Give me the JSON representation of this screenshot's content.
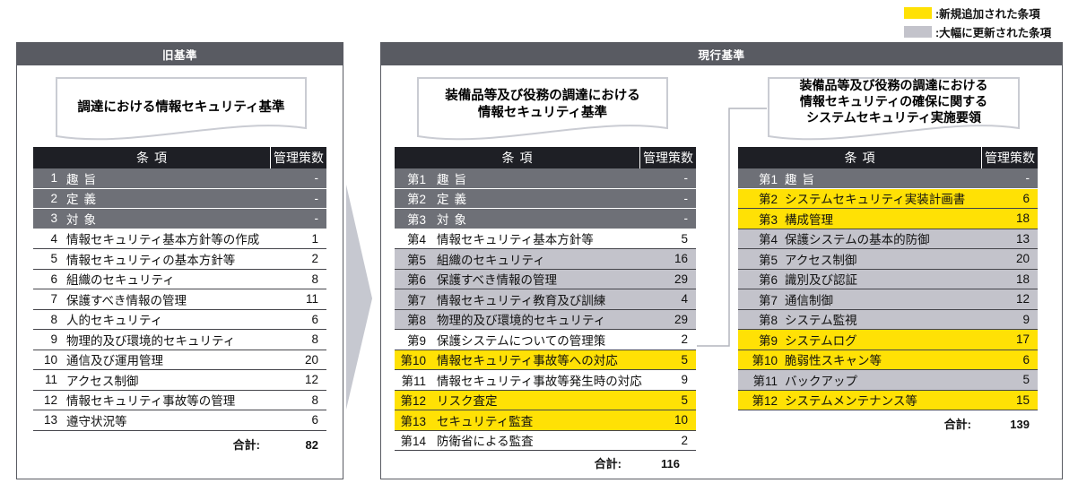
{
  "legend": {
    "new": {
      "label": ":新規追加された条項",
      "color": "#ffe105"
    },
    "updated": {
      "label": ":大幅に更新された条項",
      "color": "#c3c3cb"
    }
  },
  "old_panel": {
    "header": "旧基準",
    "doc_title": "調達における情報セキュリティ基準",
    "table": {
      "columns": {
        "item": "条項",
        "count": "管理策数"
      },
      "rows": [
        {
          "no": "1",
          "name": "趣旨",
          "count": "-",
          "style": "heading"
        },
        {
          "no": "2",
          "name": "定義",
          "count": "-",
          "style": "heading"
        },
        {
          "no": "3",
          "name": "対象",
          "count": "-",
          "style": "heading"
        },
        {
          "no": "4",
          "name": "情報セキュリティ基本方針等の作成",
          "count": "1",
          "style": "normal"
        },
        {
          "no": "5",
          "name": "情報セキュリティの基本方針等",
          "count": "2",
          "style": "normal"
        },
        {
          "no": "6",
          "name": "組織のセキュリティ",
          "count": "8",
          "style": "normal"
        },
        {
          "no": "7",
          "name": "保護すべき情報の管理",
          "count": "11",
          "style": "normal"
        },
        {
          "no": "8",
          "name": "人的セキュリティ",
          "count": "6",
          "style": "normal"
        },
        {
          "no": "9",
          "name": "物理的及び環境的セキュリティ",
          "count": "8",
          "style": "normal"
        },
        {
          "no": "10",
          "name": "通信及び運用管理",
          "count": "20",
          "style": "normal"
        },
        {
          "no": "11",
          "name": "アクセス制御",
          "count": "12",
          "style": "normal"
        },
        {
          "no": "12",
          "name": "情報セキュリティ事故等の管理",
          "count": "8",
          "style": "normal"
        },
        {
          "no": "13",
          "name": "遵守状況等",
          "count": "6",
          "style": "normal"
        }
      ],
      "total_label": "合計:",
      "total": "82"
    }
  },
  "current_panel": {
    "header": "現行基準",
    "standard_table": {
      "doc_title_lines": [
        "装備品等及び役務の調達における",
        "情報セキュリティ基準"
      ],
      "columns": {
        "item": "条項",
        "count": "管理策数"
      },
      "rows": [
        {
          "no": "第1",
          "name": "趣旨",
          "count": "-",
          "style": "heading"
        },
        {
          "no": "第2",
          "name": "定義",
          "count": "-",
          "style": "heading"
        },
        {
          "no": "第3",
          "name": "対象",
          "count": "-",
          "style": "heading"
        },
        {
          "no": "第4",
          "name": "情報セキュリティ基本方針等",
          "count": "5",
          "style": "normal"
        },
        {
          "no": "第5",
          "name": "組織のセキュリティ",
          "count": "16",
          "style": "updated"
        },
        {
          "no": "第6",
          "name": "保護すべき情報の管理",
          "count": "29",
          "style": "updated"
        },
        {
          "no": "第7",
          "name": "情報セキュリティ教育及び訓練",
          "count": "4",
          "style": "updated"
        },
        {
          "no": "第8",
          "name": "物理的及び環境的セキュリティ",
          "count": "29",
          "style": "updated"
        },
        {
          "no": "第9",
          "name": "保護システムについての管理策",
          "count": "2",
          "style": "normal"
        },
        {
          "no": "第10",
          "name": "情報セキュリティ事故等への対応",
          "count": "5",
          "style": "new"
        },
        {
          "no": "第11",
          "name": "情報セキュリティ事故等発生時の対応",
          "count": "9",
          "style": "normal"
        },
        {
          "no": "第12",
          "name": "リスク査定",
          "count": "5",
          "style": "new"
        },
        {
          "no": "第13",
          "name": "セキュリティ監査",
          "count": "10",
          "style": "new"
        },
        {
          "no": "第14",
          "name": "防衛省による監査",
          "count": "2",
          "style": "normal"
        }
      ],
      "total_label": "合計:",
      "total": "116"
    },
    "implementation_table": {
      "doc_title_lines": [
        "装備品等及び役務の調達における",
        "情報セキュリティの確保に関する",
        "システムセキュリティ実施要領"
      ],
      "columns": {
        "item": "条項",
        "count": "管理策数"
      },
      "rows": [
        {
          "no": "第1",
          "name": "趣旨",
          "count": "-",
          "style": "heading"
        },
        {
          "no": "第2",
          "name": "システムセキュリティ実装計画書",
          "count": "6",
          "style": "new"
        },
        {
          "no": "第3",
          "name": "構成管理",
          "count": "18",
          "style": "new"
        },
        {
          "no": "第4",
          "name": "保護システムの基本的防御",
          "count": "13",
          "style": "updated"
        },
        {
          "no": "第5",
          "name": "アクセス制御",
          "count": "20",
          "style": "updated"
        },
        {
          "no": "第6",
          "name": "識別及び認証",
          "count": "18",
          "style": "updated"
        },
        {
          "no": "第7",
          "name": "通信制御",
          "count": "12",
          "style": "updated"
        },
        {
          "no": "第8",
          "name": "システム監視",
          "count": "9",
          "style": "updated"
        },
        {
          "no": "第9",
          "name": "システムログ",
          "count": "17",
          "style": "new"
        },
        {
          "no": "第10",
          "name": "脆弱性スキャン等",
          "count": "6",
          "style": "new"
        },
        {
          "no": "第11",
          "name": "バックアップ",
          "count": "5",
          "style": "updated"
        },
        {
          "no": "第12",
          "name": "システムメンテナンス等",
          "count": "15",
          "style": "new"
        }
      ],
      "total_label": "合計:",
      "total": "139"
    }
  }
}
